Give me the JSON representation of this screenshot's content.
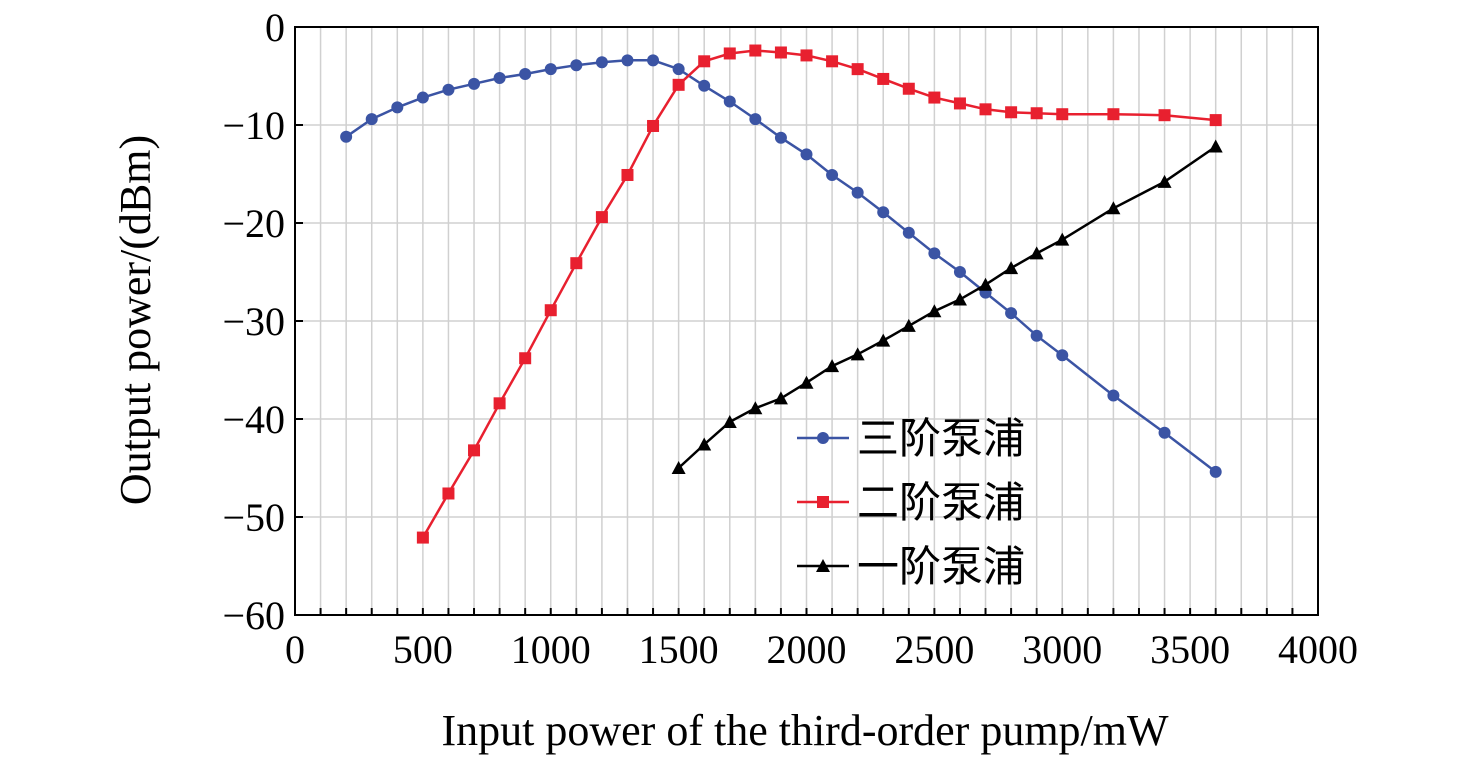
{
  "chart_data": {
    "type": "line",
    "title": "",
    "xlabel": "Input power of the third-order pump/mW",
    "ylabel": "Output power/(dBm)",
    "xlim": [
      0,
      4000
    ],
    "ylim": [
      -60,
      0
    ],
    "xticks": [
      0,
      500,
      1000,
      1500,
      2000,
      2500,
      3000,
      3500,
      4000
    ],
    "yticks": [
      0,
      -10,
      -20,
      -30,
      -40,
      -50,
      -60
    ],
    "xtick_labels": [
      "0",
      "500",
      "1000",
      "1500",
      "2000",
      "2500",
      "3000",
      "3500",
      "4000"
    ],
    "ytick_labels": [
      "0",
      "−10",
      "−20",
      "−30",
      "−40",
      "−50",
      "−60"
    ],
    "grid": true,
    "legend_position": "bottom-right",
    "series": [
      {
        "name": "三阶泵浦",
        "color": "#3b54a4",
        "marker": "circle",
        "x": [
          200,
          300,
          400,
          500,
          600,
          700,
          800,
          900,
          1000,
          1100,
          1200,
          1300,
          1400,
          1500,
          1600,
          1700,
          1800,
          1900,
          2000,
          2100,
          2200,
          2300,
          2400,
          2500,
          2600,
          2700,
          2800,
          2900,
          3000,
          3200,
          3400,
          3600
        ],
        "y": [
          -11.2,
          -9.4,
          -8.2,
          -7.2,
          -6.4,
          -5.8,
          -5.2,
          -4.8,
          -4.3,
          -3.9,
          -3.6,
          -3.4,
          -3.4,
          -4.3,
          -6.0,
          -7.6,
          -9.4,
          -11.3,
          -13.0,
          -15.1,
          -16.9,
          -18.9,
          -21.0,
          -23.1,
          -25.0,
          -27.1,
          -29.2,
          -31.5,
          -33.5,
          -37.6,
          -41.4,
          -45.4
        ]
      },
      {
        "name": "二阶泵浦",
        "color": "#e8202f",
        "marker": "square",
        "x": [
          500,
          600,
          700,
          800,
          900,
          1000,
          1100,
          1200,
          1300,
          1400,
          1500,
          1600,
          1700,
          1800,
          1900,
          2000,
          2100,
          2200,
          2300,
          2400,
          2500,
          2600,
          2700,
          2800,
          2900,
          3000,
          3200,
          3400,
          3600
        ],
        "y": [
          -52.1,
          -47.6,
          -43.2,
          -38.4,
          -33.8,
          -28.9,
          -24.1,
          -19.4,
          -15.1,
          -10.1,
          -5.9,
          -3.5,
          -2.7,
          -2.4,
          -2.6,
          -2.9,
          -3.5,
          -4.3,
          -5.3,
          -6.3,
          -7.2,
          -7.8,
          -8.4,
          -8.7,
          -8.8,
          -8.9,
          -8.9,
          -9.0,
          -9.5
        ]
      },
      {
        "name": "一阶泵浦",
        "color": "#000000",
        "marker": "triangle",
        "x": [
          1500,
          1600,
          1700,
          1800,
          1900,
          2000,
          2100,
          2200,
          2300,
          2400,
          2500,
          2600,
          2700,
          2800,
          2900,
          3000,
          3200,
          3400,
          3600
        ],
        "y": [
          -45.0,
          -42.6,
          -40.3,
          -38.9,
          -37.9,
          -36.3,
          -34.6,
          -33.4,
          -32.0,
          -30.5,
          -29.0,
          -27.8,
          -26.3,
          -24.6,
          -23.1,
          -21.7,
          -18.5,
          -15.8,
          -12.2
        ]
      }
    ]
  }
}
